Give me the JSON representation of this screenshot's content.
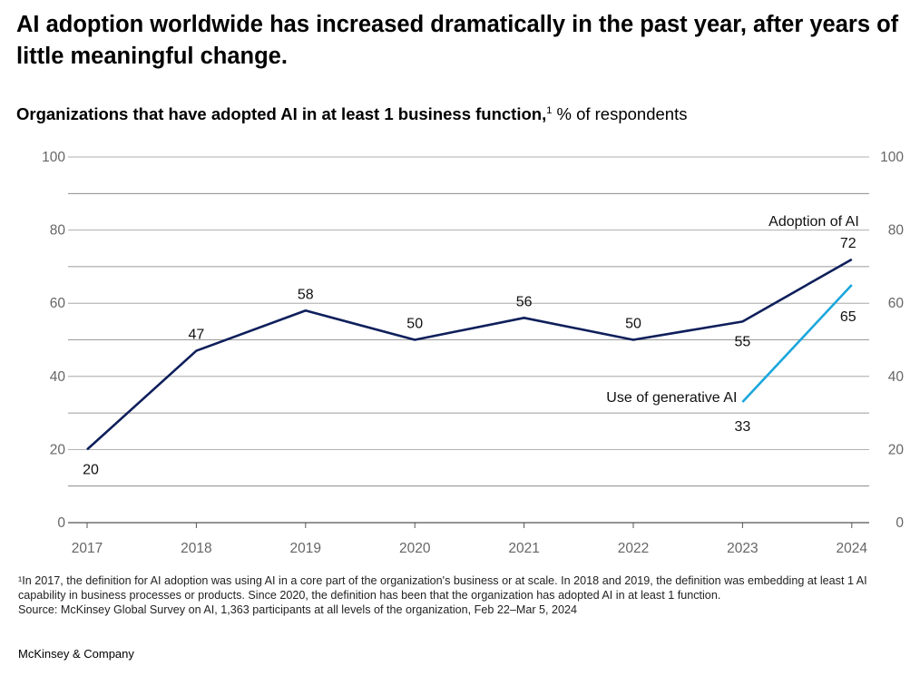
{
  "headline": "AI adoption worldwide has increased dramatically in the past year, after years of little meaningful change.",
  "subtitle": {
    "bold": "Organizations that have adopted AI in at least 1 business function,",
    "sup": "1",
    "rest": " % of respondents"
  },
  "chart_data": {
    "type": "line",
    "x": [
      "2017",
      "2018",
      "2019",
      "2020",
      "2021",
      "2022",
      "2023",
      "2024"
    ],
    "ylim": [
      0,
      100
    ],
    "yticks": [
      "0",
      "20",
      "40",
      "60",
      "80",
      "100"
    ],
    "grid": true,
    "series": [
      {
        "name": "Adoption of AI",
        "color": "#0e1f5b",
        "values": [
          20,
          47,
          58,
          50,
          56,
          50,
          55,
          72
        ],
        "labels": [
          "20",
          "47",
          "58",
          "50",
          "56",
          "50",
          "55",
          "72"
        ]
      },
      {
        "name": "Use of generative AI",
        "color": "#1aa6dc",
        "x": [
          "2023",
          "2024"
        ],
        "values": [
          33,
          65
        ],
        "labels": [
          "33",
          "65"
        ]
      }
    ]
  },
  "footnotes": [
    "¹In 2017, the definition for AI adoption was using AI in a core part of the organization's business or at scale. In 2018 and 2019, the definition was embedding at least 1 AI capability in business processes or products. Since 2020, the definition has been that the organization has adopted AI in at least 1 function.",
    "Source: McKinsey Global Survey on AI, 1,363 participants at all levels of the organization, Feb 22–Mar 5, 2024"
  ],
  "brand": "McKinsey & Company"
}
